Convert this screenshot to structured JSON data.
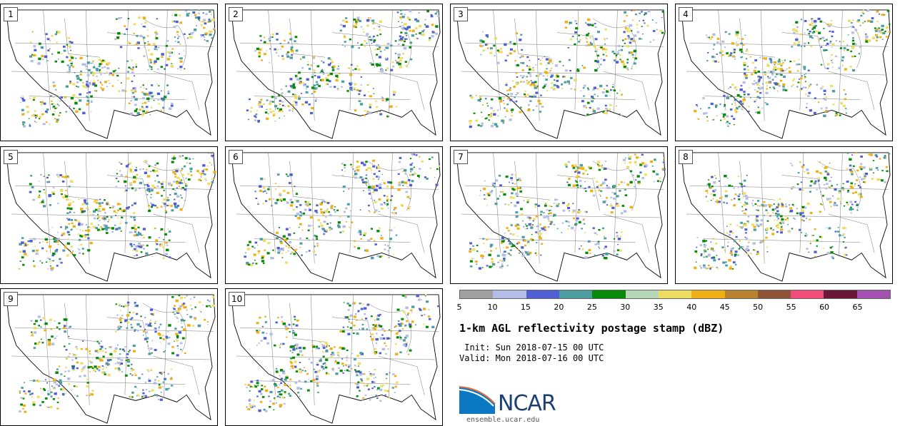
{
  "title": "1-km AGL reflectivity postage stamp (dBZ)",
  "init_label": " Init: Sun 2018-07-15 00 UTC",
  "valid_label": "Valid: Mon 2018-07-16 00 UTC",
  "site": "ensemble.ucar.edu",
  "logo_text": "NCAR",
  "members": [
    {
      "label": "1"
    },
    {
      "label": "2"
    },
    {
      "label": "3"
    },
    {
      "label": "4"
    },
    {
      "label": "5"
    },
    {
      "label": "6"
    },
    {
      "label": "7"
    },
    {
      "label": "8"
    },
    {
      "label": "9"
    },
    {
      "label": "10"
    }
  ],
  "colorbar": {
    "ticks": [
      "5",
      "10",
      "15",
      "20",
      "25",
      "30",
      "35",
      "40",
      "45",
      "50",
      "55",
      "60",
      "65"
    ],
    "colors": [
      "#a0a0a0",
      "#b4bde8",
      "#4f5fd3",
      "#4d9ea0",
      "#078a07",
      "#b6d8b6",
      "#eedd60",
      "#efb017",
      "#b8822e",
      "#8e5435",
      "#f04d7b",
      "#6b1838",
      "#a450b0"
    ]
  }
}
